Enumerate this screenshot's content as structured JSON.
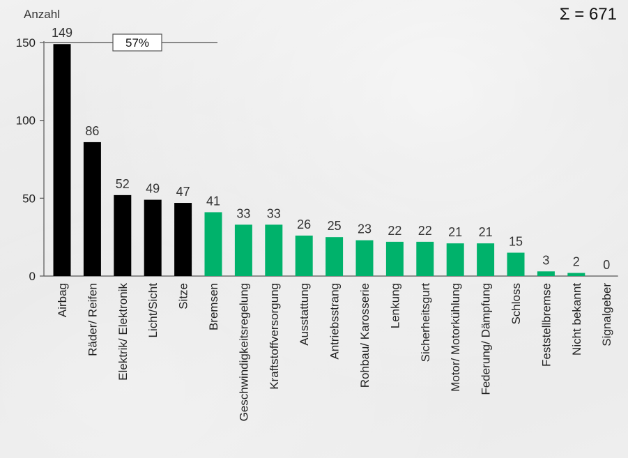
{
  "chart_data": {
    "type": "bar",
    "ylabel": "Anzahl",
    "ylim": [
      0,
      150
    ],
    "yticks": [
      0,
      50,
      100,
      150
    ],
    "categories": [
      "Airbag",
      "Räder/ Reifen",
      "Elektrik/ Elektronik",
      "Licht/Sicht",
      "Sitze",
      "Bremsen",
      "Geschwindigkeitsregelung",
      "Kraftstoffversorgung",
      "Ausstattung",
      "Antriebsstrang",
      "Rohbau/ Karosserie",
      "Lenkung",
      "Sicherheitsgurt",
      "Motor/ Motorkühlung",
      "Federung/ Dämpfung",
      "Schloss",
      "Feststellbremse",
      "Nicht bekannt",
      "Signalgeber"
    ],
    "values": [
      149,
      86,
      52,
      49,
      47,
      41,
      33,
      33,
      26,
      25,
      23,
      22,
      22,
      21,
      21,
      15,
      3,
      2,
      0
    ],
    "highlight_count": 5,
    "colors": {
      "highlight": "#000000",
      "rest": "#00b26b"
    },
    "total_label": "Σ = 671",
    "share_label": "57%",
    "grid": false
  }
}
